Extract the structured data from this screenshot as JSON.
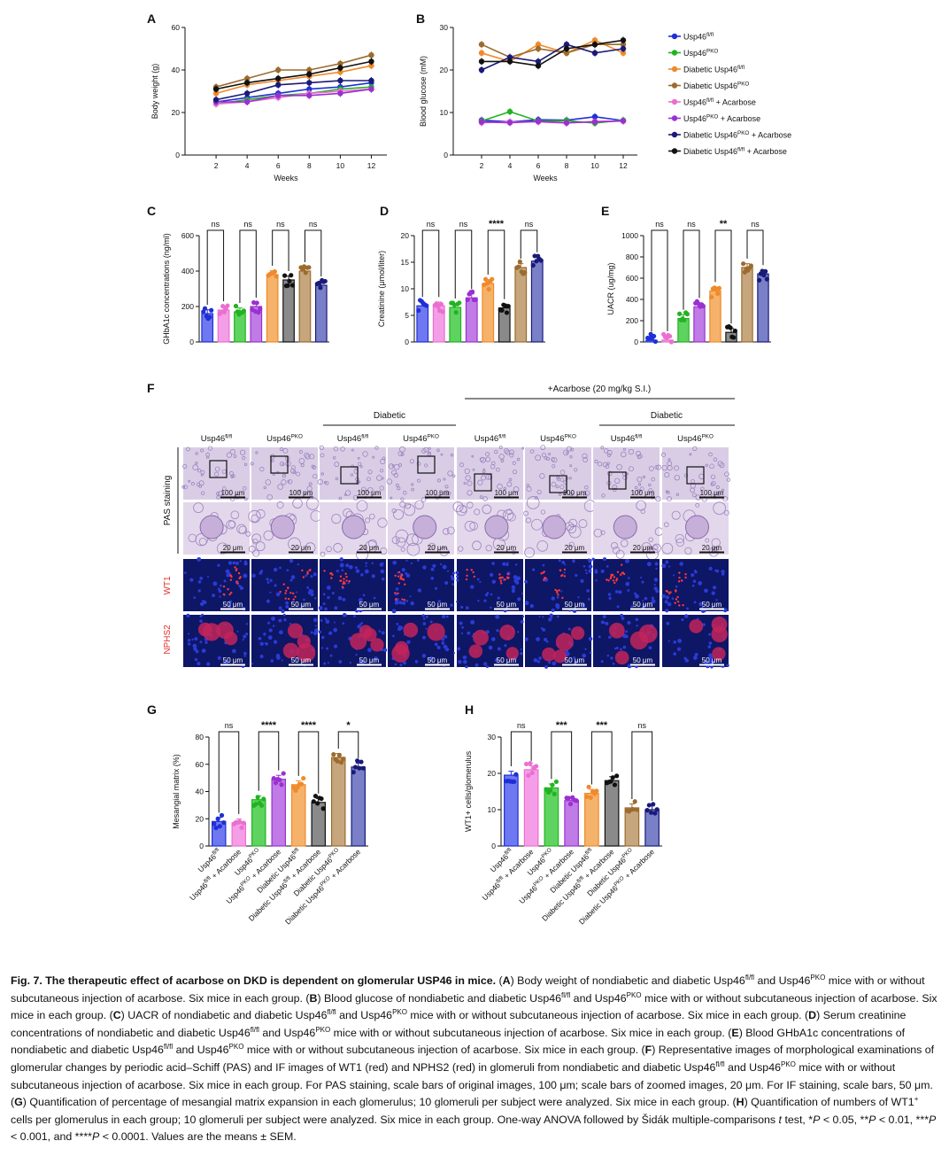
{
  "colors": {
    "Usp46fl": "#1f2fd6",
    "Usp46PKO": "#22b322",
    "DiabeticUsp46fl": "#f08a2a",
    "DiabeticUsp46PKO": "#9c6b2e",
    "Usp46flAcarbose": "#ea6fd0",
    "Usp46PKOAcarbose": "#9b30d0",
    "DiabeticUsp46PKOAcarbose": "#1a1a7a",
    "DiabeticUsp46flAcarbose": "#111111",
    "bar_blue": "#6e78f0",
    "bar_pink": "#f59ee8",
    "bar_green": "#5fd35f",
    "bar_purple": "#c07be6",
    "bar_orange": "#f5b26b",
    "bar_gray": "#8a8a8a",
    "bar_brown": "#c6a67d",
    "bar_navy": "#7a80c8"
  },
  "panel_letters": {
    "A": "A",
    "B": "B",
    "C": "C",
    "D": "D",
    "E": "E",
    "F": "F",
    "G": "G",
    "H": "H"
  },
  "legend": {
    "items": [
      {
        "base": "Usp46",
        "sup": "fl/fl",
        "suffix": "",
        "color_key": "Usp46fl"
      },
      {
        "base": "Usp46",
        "sup": "PKO",
        "suffix": "",
        "color_key": "Usp46PKO"
      },
      {
        "base": "Diabetic Usp46",
        "sup": "fl/fl",
        "suffix": "",
        "color_key": "DiabeticUsp46fl"
      },
      {
        "base": "Diabetic Usp46",
        "sup": "PKO",
        "suffix": "",
        "color_key": "DiabeticUsp46PKO"
      },
      {
        "base": "Usp46",
        "sup": "fl/fl",
        "suffix": " + Acarbose",
        "color_key": "Usp46flAcarbose"
      },
      {
        "base": "Usp46",
        "sup": "PKO",
        "suffix": " + Acarbose",
        "color_key": "Usp46PKOAcarbose"
      },
      {
        "base": "Diabetic Usp46",
        "sup": "PKO",
        "suffix": " + Acarbose",
        "color_key": "DiabeticUsp46PKOAcarbose"
      },
      {
        "base": "Diabetic Usp46",
        "sup": "fl/fl",
        "suffix": " + Acarbose",
        "color_key": "DiabeticUsp46flAcarbose"
      }
    ]
  },
  "chart_data": [
    {
      "panel": "A",
      "type": "line",
      "ylabel": "Body weight (g)",
      "xlabel": "Weeks",
      "x": [
        2,
        4,
        6,
        8,
        10,
        12
      ],
      "xlim": [
        0,
        13
      ],
      "ylim": [
        0,
        60
      ],
      "yticks": [
        0,
        20,
        40,
        60
      ],
      "xticks": [
        2,
        4,
        6,
        8,
        10,
        12
      ],
      "series": [
        {
          "name": "Usp46fl/fl",
          "color_key": "Usp46fl",
          "values": [
            25,
            27,
            29,
            31,
            32,
            34
          ]
        },
        {
          "name": "Usp46PKO",
          "color_key": "Usp46PKO",
          "values": [
            24,
            26,
            28,
            29,
            31,
            32
          ]
        },
        {
          "name": "Diabetic Usp46fl/fl",
          "color_key": "DiabeticUsp46fl",
          "values": [
            29,
            33,
            35,
            37,
            39,
            42
          ]
        },
        {
          "name": "Diabetic Usp46PKO",
          "color_key": "DiabeticUsp46PKO",
          "values": [
            32,
            36,
            40,
            40,
            43,
            47
          ]
        },
        {
          "name": "Usp46fl/fl + Acarbose",
          "color_key": "Usp46flAcarbose",
          "values": [
            24,
            25,
            27,
            29,
            30,
            31
          ]
        },
        {
          "name": "Usp46PKO + Acarbose",
          "color_key": "Usp46PKOAcarbose",
          "values": [
            25,
            25,
            28,
            28,
            29,
            31
          ]
        },
        {
          "name": "Diabetic Usp46PKO + Acarbose",
          "color_key": "DiabeticUsp46PKOAcarbose",
          "values": [
            26,
            29,
            33,
            34,
            35,
            35
          ]
        },
        {
          "name": "Diabetic Usp46fl/fl + Acarbose",
          "color_key": "DiabeticUsp46flAcarbose",
          "values": [
            31,
            34,
            36,
            38,
            41,
            44
          ]
        }
      ]
    },
    {
      "panel": "B",
      "type": "line",
      "ylabel": "Blood glucose (mM)",
      "xlabel": "Weeks",
      "x": [
        2,
        4,
        6,
        8,
        10,
        12
      ],
      "xlim": [
        0,
        13
      ],
      "ylim": [
        0,
        30
      ],
      "yticks": [
        0,
        10,
        20,
        30
      ],
      "xticks": [
        2,
        4,
        6,
        8,
        10,
        12
      ],
      "series": [
        {
          "name": "Usp46fl/fl",
          "color_key": "Usp46fl",
          "values": [
            8.2,
            7.8,
            8.3,
            8.2,
            9.0,
            8.1
          ]
        },
        {
          "name": "Usp46PKO",
          "color_key": "Usp46PKO",
          "values": [
            8.0,
            10.2,
            8.0,
            8.1,
            7.5,
            8.2
          ]
        },
        {
          "name": "Diabetic Usp46fl/fl",
          "color_key": "DiabeticUsp46fl",
          "values": [
            24,
            22,
            26,
            24,
            27,
            24
          ]
        },
        {
          "name": "Diabetic Usp46PKO",
          "color_key": "DiabeticUsp46PKO",
          "values": [
            26,
            23,
            25,
            24,
            26,
            26
          ]
        },
        {
          "name": "Usp46fl/fl + Acarbose",
          "color_key": "Usp46flAcarbose",
          "values": [
            7.6,
            7.8,
            7.8,
            7.5,
            7.9,
            8.0
          ]
        },
        {
          "name": "Usp46PKO + Acarbose",
          "color_key": "Usp46PKOAcarbose",
          "values": [
            7.8,
            7.6,
            7.9,
            7.6,
            7.8,
            8.0
          ]
        },
        {
          "name": "Diabetic Usp46PKO + Acarbose",
          "color_key": "DiabeticUsp46PKOAcarbose",
          "values": [
            20,
            23,
            22,
            26,
            24,
            25
          ]
        },
        {
          "name": "Diabetic Usp46fl/fl + Acarbose",
          "color_key": "DiabeticUsp46flAcarbose",
          "values": [
            22,
            22,
            21,
            25,
            26,
            27
          ]
        }
      ]
    },
    {
      "panel": "C",
      "type": "bar",
      "ylabel": "GHbA1c concentrations (ng/ml)",
      "ylim": [
        0,
        600
      ],
      "yticks": [
        0,
        200,
        400,
        600
      ],
      "bar_color_keys": [
        "bar_blue",
        "bar_pink",
        "bar_green",
        "bar_purple",
        "bar_orange",
        "bar_gray",
        "bar_brown",
        "bar_navy"
      ],
      "dot_color_keys": [
        "Usp46fl",
        "Usp46flAcarbose",
        "Usp46PKO",
        "Usp46PKOAcarbose",
        "DiabeticUsp46fl",
        "DiabeticUsp46flAcarbose",
        "DiabeticUsp46PKO",
        "DiabeticUsp46PKOAcarbose"
      ],
      "values": [
        160,
        180,
        170,
        200,
        380,
        350,
        400,
        320
      ],
      "significance": [
        "ns",
        "ns",
        "ns",
        "ns"
      ]
    },
    {
      "panel": "D",
      "type": "bar",
      "ylabel": "Creatinine (μmol/liter)",
      "ylim": [
        0,
        20
      ],
      "yticks": [
        0,
        5,
        10,
        15,
        20
      ],
      "bar_color_keys": [
        "bar_blue",
        "bar_pink",
        "bar_green",
        "bar_purple",
        "bar_orange",
        "bar_gray",
        "bar_brown",
        "bar_navy"
      ],
      "dot_color_keys": [
        "Usp46fl",
        "Usp46flAcarbose",
        "Usp46PKO",
        "Usp46PKOAcarbose",
        "DiabeticUsp46fl",
        "DiabeticUsp46flAcarbose",
        "DiabeticUsp46PKO",
        "DiabeticUsp46PKOAcarbose"
      ],
      "values": [
        6.8,
        6.8,
        6.5,
        8.3,
        11.0,
        6.4,
        14.0,
        15.2
      ],
      "significance": [
        "ns",
        "ns",
        "****",
        "ns"
      ]
    },
    {
      "panel": "E",
      "type": "bar",
      "ylabel": "UACR (ug/mg)",
      "ylim": [
        0,
        1000
      ],
      "yticks": [
        0,
        200,
        400,
        600,
        800,
        1000
      ],
      "bar_color_keys": [
        "bar_blue",
        "bar_pink",
        "bar_green",
        "bar_purple",
        "bar_orange",
        "bar_gray",
        "bar_brown",
        "bar_navy"
      ],
      "dot_color_keys": [
        "Usp46fl",
        "Usp46flAcarbose",
        "Usp46PKO",
        "Usp46PKOAcarbose",
        "DiabeticUsp46fl",
        "DiabeticUsp46flAcarbose",
        "DiabeticUsp46PKO",
        "DiabeticUsp46PKOAcarbose"
      ],
      "values": [
        15,
        18,
        220,
        330,
        480,
        90,
        700,
        640
      ],
      "significance": [
        "ns",
        "ns",
        "**",
        "ns"
      ]
    },
    {
      "panel": "G",
      "type": "bar",
      "ylabel": "Mesangial matrix (%)",
      "ylim": [
        0,
        80
      ],
      "yticks": [
        0,
        20,
        40,
        60,
        80
      ],
      "bar_color_keys": [
        "bar_blue",
        "bar_pink",
        "bar_green",
        "bar_purple",
        "bar_orange",
        "bar_gray",
        "bar_brown",
        "bar_navy"
      ],
      "dot_color_keys": [
        "Usp46fl",
        "Usp46flAcarbose",
        "Usp46PKO",
        "Usp46PKOAcarbose",
        "DiabeticUsp46fl",
        "DiabeticUsp46flAcarbose",
        "DiabeticUsp46PKO",
        "DiabeticUsp46PKOAcarbose"
      ],
      "values": [
        18,
        17,
        34,
        49,
        45,
        32,
        65,
        58
      ],
      "significance": [
        "ns",
        "****",
        "****",
        "*"
      ],
      "categories": [
        {
          "base": "Usp46",
          "sup": "fl/fl",
          "suffix": ""
        },
        {
          "base": "Usp46",
          "sup": "fl/fl",
          "suffix": " + Acarbose"
        },
        {
          "base": "Usp46",
          "sup": "PKO",
          "suffix": ""
        },
        {
          "base": "Usp46",
          "sup": "PKO",
          "suffix": " + Acarbose"
        },
        {
          "base": "Diabetic Usp46",
          "sup": "fl/fl",
          "suffix": ""
        },
        {
          "base": "Diabetic Usp46",
          "sup": "fl/fl",
          "suffix": " + Acarbose"
        },
        {
          "base": "Diabetic Usp46",
          "sup": "PKO",
          "suffix": ""
        },
        {
          "base": "Diabetic Usp46",
          "sup": "PKO",
          "suffix": " + Acarbose"
        }
      ]
    },
    {
      "panel": "H",
      "type": "bar",
      "ylabel": "WT1+ cells/glomerulus",
      "ylim": [
        0,
        30
      ],
      "yticks": [
        0,
        10,
        20,
        30
      ],
      "bar_color_keys": [
        "bar_blue",
        "bar_pink",
        "bar_green",
        "bar_purple",
        "bar_orange",
        "bar_gray",
        "bar_brown",
        "bar_navy"
      ],
      "dot_color_keys": [
        "Usp46fl",
        "Usp46flAcarbose",
        "Usp46PKO",
        "Usp46PKOAcarbose",
        "DiabeticUsp46fl",
        "DiabeticUsp46flAcarbose",
        "DiabeticUsp46PKO",
        "DiabeticUsp46PKOAcarbose"
      ],
      "values": [
        19.5,
        21.0,
        16.0,
        12.5,
        14.5,
        18.0,
        10.5,
        10.0
      ],
      "significance": [
        "ns",
        "***",
        "***",
        "ns"
      ],
      "categories": [
        {
          "base": "Usp46",
          "sup": "fl/fl",
          "suffix": ""
        },
        {
          "base": "Usp46",
          "sup": "fl/fl",
          "suffix": " + Acarbose"
        },
        {
          "base": "Usp46",
          "sup": "PKO",
          "suffix": ""
        },
        {
          "base": "Usp46",
          "sup": "PKO",
          "suffix": " + Acarbose"
        },
        {
          "base": "Diabetic Usp46",
          "sup": "fl/fl",
          "suffix": ""
        },
        {
          "base": "Diabetic Usp46",
          "sup": "fl/fl",
          "suffix": " + Acarbose"
        },
        {
          "base": "Diabetic Usp46",
          "sup": "PKO",
          "suffix": ""
        },
        {
          "base": "Diabetic Usp46",
          "sup": "PKO",
          "suffix": " + Acarbose"
        }
      ]
    }
  ],
  "panelF": {
    "acarbose_header": "+Acarbose (20 mg/kg S.I.)",
    "diabetic_label_left": "Diabetic",
    "diabetic_label_right": "Diabetic",
    "columns": [
      {
        "base": "Usp46",
        "sup": "fl/fl"
      },
      {
        "base": "Usp46",
        "sup": "PKO"
      },
      {
        "base": "Usp46",
        "sup": "fl/fl"
      },
      {
        "base": "Usp46",
        "sup": "PKO"
      },
      {
        "base": "Usp46",
        "sup": "fl/fl"
      },
      {
        "base": "Usp46",
        "sup": "PKO"
      },
      {
        "base": "Usp46",
        "sup": "fl/fl"
      },
      {
        "base": "Usp46",
        "sup": "PKO"
      }
    ],
    "row_labels": {
      "pas": "PAS staining",
      "wt1": "WT1",
      "nphs2": "NPHS2"
    },
    "scalebars": {
      "pas_low": "100 μm",
      "pas_zoom": "20 μm",
      "if": "50 μm"
    },
    "row_colors": {
      "wt1": "#e03030",
      "nphs2": "#e03030"
    }
  },
  "caption": {
    "title": "Fig. 7. The therapeutic effect of acarbose on DKD is dependent on glomerular USP46 in mice.",
    "lines": [
      {
        "segments": [
          {
            "t": "(",
            "s": ""
          },
          {
            "t": "A",
            "s": "b"
          },
          {
            "t": ") Body weight of nondiabetic and diabetic Usp46",
            "s": ""
          },
          {
            "t": "fl/fl",
            "s": "sup"
          },
          {
            "t": " and Usp46",
            "s": ""
          },
          {
            "t": "PKO",
            "s": "sup"
          },
          {
            "t": " mice with or without subcutaneous injection of acarbose. Six mice in each group. (",
            "s": ""
          },
          {
            "t": "B",
            "s": "b"
          },
          {
            "t": ") Blood glucose of nondiabetic and diabetic Usp46",
            "s": ""
          },
          {
            "t": "fl/fl",
            "s": "sup"
          },
          {
            "t": " and Usp46",
            "s": ""
          },
          {
            "t": "PKO",
            "s": "sup"
          },
          {
            "t": " mice with or without subcutaneous injection of acarbose. Six mice in each group. (",
            "s": ""
          },
          {
            "t": "C",
            "s": "b"
          },
          {
            "t": ") UACR of nondiabetic and diabetic Usp46",
            "s": ""
          },
          {
            "t": "fl/fl",
            "s": "sup"
          },
          {
            "t": " and Usp46",
            "s": ""
          },
          {
            "t": "PKO",
            "s": "sup"
          },
          {
            "t": " mice with or without subcutaneous injection of acarbose. Six mice in each group. (",
            "s": ""
          },
          {
            "t": "D",
            "s": "b"
          },
          {
            "t": ") Serum creatinine concentrations of nondiabetic and diabetic Usp46",
            "s": ""
          },
          {
            "t": "fl/fl",
            "s": "sup"
          },
          {
            "t": " and Usp46",
            "s": ""
          },
          {
            "t": "PKO",
            "s": "sup"
          },
          {
            "t": " mice with or without subcutaneous injection of acarbose. Six mice in each group. (",
            "s": ""
          },
          {
            "t": "E",
            "s": "b"
          },
          {
            "t": ") Blood GHbA1c concentrations of nondiabetic and diabetic Usp46",
            "s": ""
          },
          {
            "t": "fl/fl",
            "s": "sup"
          },
          {
            "t": " and Usp46",
            "s": ""
          },
          {
            "t": "PKO",
            "s": "sup"
          },
          {
            "t": " mice with or without subcutaneous injection of acarbose. Six mice in each group. (",
            "s": ""
          },
          {
            "t": "F",
            "s": "b"
          },
          {
            "t": ") Representative images of morphological examinations of glomerular changes by periodic acid–Schiff (PAS) and IF images of WT1 (red) and NPHS2 (red) in glomeruli from nondiabetic and diabetic Usp46",
            "s": ""
          },
          {
            "t": "fl/fl",
            "s": "sup"
          },
          {
            "t": " and Usp46",
            "s": ""
          },
          {
            "t": "PKO",
            "s": "sup"
          },
          {
            "t": " mice with or without subcutaneous injection of acarbose. Six mice in each group. For PAS staining, scale bars of original images, 100 μm; scale bars of zoomed images, 20 μm. For IF staining, scale bars, 50 μm. (",
            "s": ""
          },
          {
            "t": "G",
            "s": "b"
          },
          {
            "t": ") Quantification of percentage of mesangial matrix expansion in each glomerulus; 10 glomeruli per subject were analyzed. Six mice in each group. (",
            "s": ""
          },
          {
            "t": "H",
            "s": "b"
          },
          {
            "t": ") Quantification of numbers of WT1",
            "s": ""
          },
          {
            "t": "+",
            "s": "sup"
          },
          {
            "t": " cells per glomerulus in each group; 10 glomeruli per subject were analyzed. Six mice in each group. One-way ANOVA followed by Šidák multiple-comparisons ",
            "s": ""
          },
          {
            "t": "t",
            "s": "i"
          },
          {
            "t": " test, *",
            "s": ""
          },
          {
            "t": "P",
            "s": "i"
          },
          {
            "t": " < 0.05, **",
            "s": ""
          },
          {
            "t": "P",
            "s": "i"
          },
          {
            "t": " < 0.01, ***",
            "s": ""
          },
          {
            "t": "P",
            "s": "i"
          },
          {
            "t": " < 0.001, and ****",
            "s": ""
          },
          {
            "t": "P",
            "s": "i"
          },
          {
            "t": " < 0.0001. Values are the means ± SEM.",
            "s": ""
          }
        ]
      }
    ]
  }
}
